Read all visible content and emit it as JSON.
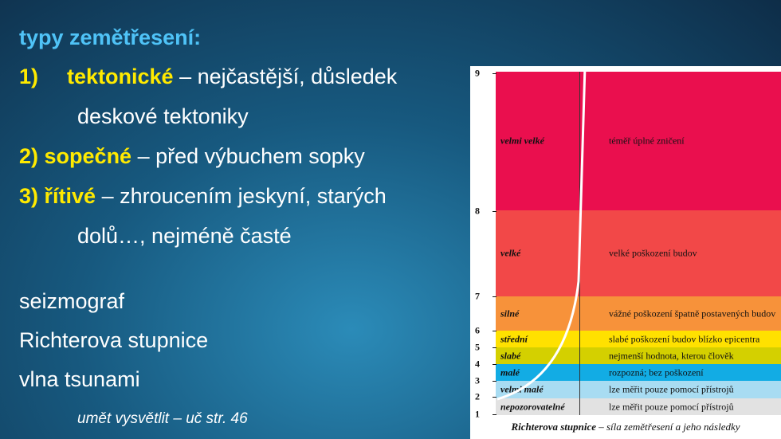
{
  "heading": "typy zemětřesení:",
  "types": [
    {
      "number": "1)",
      "name": "tektonické",
      "lines": [
        "– nejčastější, důsledek",
        "deskové tektoniky"
      ]
    },
    {
      "number": "2)",
      "name": "sopečné",
      "lines": [
        "– před výbuchem sopky"
      ]
    },
    {
      "number": "3)",
      "name": "řítivé",
      "lines": [
        "– zhroucením jeskyní, starých",
        "dolů…, nejméně časté"
      ]
    }
  ],
  "terms": [
    "seizmograf",
    "Richterova stupnice",
    "vlna tsunami"
  ],
  "note": "umět vysvětlit – uč str. 46",
  "scale": {
    "ticks": [
      "1",
      "2",
      "3",
      "4",
      "5",
      "6",
      "7",
      "8",
      "9"
    ],
    "bands": [
      {
        "level": "velmi velké",
        "effect": "téměř úplné zničení"
      },
      {
        "level": "velké",
        "effect": "velké poškození budov"
      },
      {
        "level": "silné",
        "effect": "vážné poškození špatně postavených budov"
      },
      {
        "level": "střední",
        "effect": "slabé poškození budov blízko epicentra"
      },
      {
        "level": "slabé",
        "effect": "nejmenší hodnota, kterou člověk"
      },
      {
        "level": "malé",
        "effect": "rozpozná; bez poškození"
      },
      {
        "level": "velmi malé",
        "effect": "lze měřit pouze pomocí přístrojů"
      },
      {
        "level": "nepozorovatelné",
        "effect": "lze měřit pouze pomocí přístrojů"
      }
    ],
    "caption_title": "Richterova stupnice",
    "caption_text": "– síla zemětřesení a jeho následky"
  }
}
